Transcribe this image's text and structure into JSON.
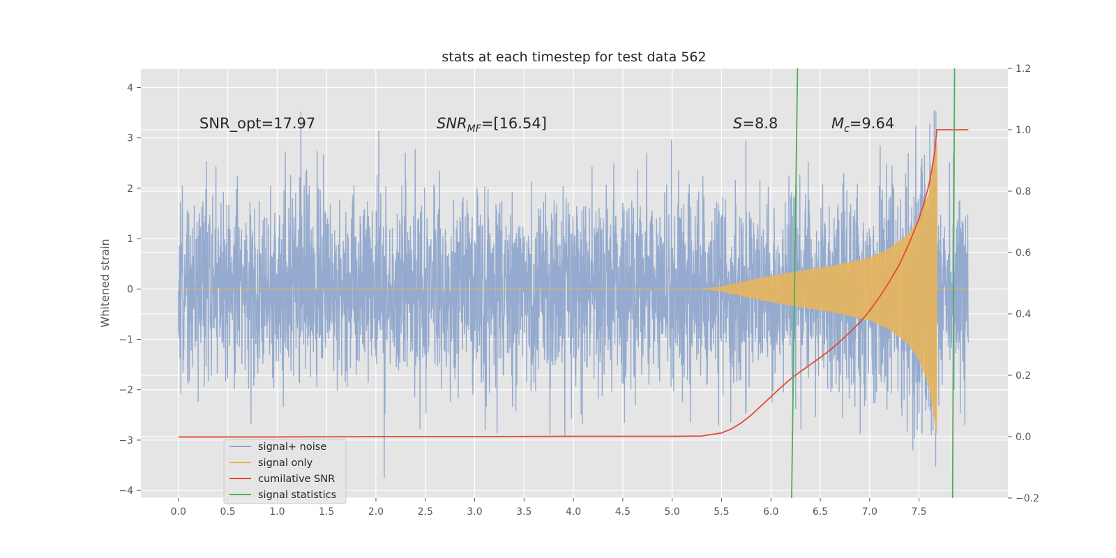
{
  "chart_data": {
    "type": "line",
    "title": "stats at each timestep for test data 562",
    "xlabel": "",
    "ylabel": "Whitened strain",
    "y2label": "",
    "xlim": [
      -0.38,
      8.4
    ],
    "ylim": [
      -4.15,
      4.38
    ],
    "y2lim": [
      -0.2,
      1.2
    ],
    "x_ticks": [
      0.0,
      0.5,
      1.0,
      1.5,
      2.0,
      2.5,
      3.0,
      3.5,
      4.0,
      4.5,
      5.0,
      5.5,
      6.0,
      6.5,
      7.0,
      7.5
    ],
    "x_tick_labels": [
      "0.0",
      "0.5",
      "1.0",
      "1.5",
      "2.0",
      "2.5",
      "3.0",
      "3.5",
      "4.0",
      "4.5",
      "5.0",
      "5.5",
      "6.0",
      "6.5",
      "7.0",
      "7.5"
    ],
    "y_ticks": [
      -4,
      -3,
      -2,
      -1,
      0,
      1,
      2,
      3,
      4
    ],
    "y_tick_labels": [
      "−4",
      "−3",
      "−2",
      "−1",
      "0",
      "1",
      "2",
      "3",
      "4"
    ],
    "y2_ticks": [
      -0.2,
      0.0,
      0.2,
      0.4,
      0.6,
      0.8,
      1.0,
      1.2
    ],
    "y2_tick_labels": [
      "−0.2",
      "0.0",
      "0.2",
      "0.4",
      "0.6",
      "0.8",
      "1.0",
      "1.2"
    ],
    "grid": true,
    "legend_position": "lower-left",
    "series": [
      {
        "name": "signal+ noise",
        "color": "#8fa6cc",
        "axis": "left",
        "x_range": [
          0.0,
          8.0
        ],
        "noise_std": 0.95,
        "y_range": [
          -3.75,
          3.75
        ]
      },
      {
        "name": "signal only",
        "color": "#e8b55c",
        "axis": "left",
        "x_range": [
          0.0,
          8.0
        ],
        "chirp_start": 5.3,
        "merger_time": 7.68,
        "envelope_x": [
          5.3,
          5.5,
          5.8,
          6.0,
          6.3,
          6.6,
          7.0,
          7.2,
          7.4,
          7.5,
          7.6,
          7.65,
          7.68
        ],
        "envelope_y": [
          0.0,
          0.05,
          0.18,
          0.26,
          0.36,
          0.45,
          0.62,
          0.8,
          1.1,
          1.4,
          1.9,
          2.5,
          2.9
        ]
      },
      {
        "name": "cumilative SNR",
        "color": "#e24a33",
        "axis": "right",
        "x": [
          0.0,
          1.0,
          2.0,
          3.0,
          4.0,
          5.0,
          5.3,
          5.5,
          5.6,
          5.7,
          5.8,
          5.9,
          6.0,
          6.1,
          6.2,
          6.3,
          6.4,
          6.5,
          6.6,
          6.7,
          6.8,
          6.9,
          7.0,
          7.1,
          7.2,
          7.3,
          7.4,
          7.5,
          7.55,
          7.6,
          7.63,
          7.66,
          7.68,
          8.0
        ],
        "y": [
          -0.001,
          -0.001,
          0.0,
          0.0,
          0.001,
          0.001,
          0.002,
          0.012,
          0.025,
          0.045,
          0.07,
          0.1,
          0.13,
          0.16,
          0.188,
          0.212,
          0.235,
          0.258,
          0.282,
          0.31,
          0.34,
          0.372,
          0.41,
          0.455,
          0.505,
          0.56,
          0.63,
          0.71,
          0.76,
          0.82,
          0.87,
          0.93,
          1.0,
          1.0
        ]
      },
      {
        "name": "signal statistics",
        "color": "#4caf5a",
        "axis": "right",
        "segments": [
          {
            "x": [
              6.21,
              6.27
            ],
            "y": [
              -0.2,
              1.2
            ]
          },
          {
            "x": [
              7.84,
              7.86
            ],
            "y": [
              -0.2,
              1.2
            ]
          }
        ]
      }
    ],
    "annotations": [
      {
        "text": "SNR_opt=17.97",
        "x": 0.2,
        "y": 3.2
      },
      {
        "text_main": "SNR",
        "text_sub": "MF",
        "text_tail": "=[16.54]",
        "x": 2.6,
        "y": 3.2
      },
      {
        "text_main": "S",
        "text_tail": "=8.8",
        "x": 5.6,
        "y": 3.2
      },
      {
        "text_main": "M",
        "text_sub": "c",
        "text_tail": "=9.64",
        "x": 6.6,
        "y": 3.2
      }
    ],
    "colors": {
      "background": "#e5e5e5",
      "grid": "#ffffff"
    }
  }
}
